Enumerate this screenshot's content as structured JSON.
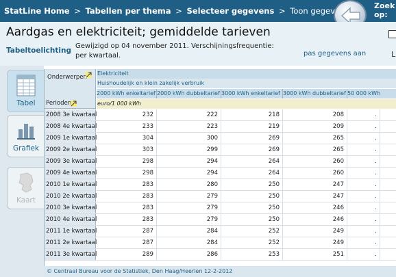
{
  "nav": {
    "crumbs": [
      {
        "label": "StatLine Home",
        "bold": true
      },
      {
        "label": "Tabellen per thema",
        "bold": true
      },
      {
        "label": "Selecteer gegevens",
        "bold": true
      },
      {
        "label": "Toon gegevens",
        "bold": false
      }
    ],
    "separator": ">",
    "zoek_line1": "Zoek",
    "zoek_line2": "op:"
  },
  "header": {
    "title": "Aardgas en elektriciteit; gemiddelde tarieven",
    "tabeltoelichting": "Tabeltoelichting",
    "gewijzigd_line1": "Gewijzigd op 04 november 2011. Verschijningsfrequentie:",
    "gewijzigd_line2": "per kwartaal.",
    "pas_gegevens_aan": "pas gegevens aan",
    "side_letter": "L"
  },
  "side_tabs": [
    {
      "label": "Tabel",
      "icon": "table-icon",
      "active": true
    },
    {
      "label": "Grafiek",
      "icon": "chart-icon",
      "active": false
    },
    {
      "label": "Kaart",
      "icon": "map-icon",
      "active": false
    }
  ],
  "table": {
    "onderwerpen": "Onderwerpen",
    "perioden": "Perioden",
    "subject": "Elektriciteit",
    "subsubject": "Huishoudelijk en klein zakelijk verbruik",
    "columns": [
      "2000 kWh enkeltarief",
      "2000 kWh dubbeltarief",
      "3000 kWh enkeltarief",
      "3000 kWh dubbeltarief",
      "50 000 kWh"
    ],
    "unit": "euro/1 000 kWh",
    "rows": [
      {
        "period": "2008 3e kwartaal",
        "values": [
          "232",
          "222",
          "218",
          "208",
          "."
        ]
      },
      {
        "period": "2008 4e kwartaal",
        "values": [
          "233",
          "223",
          "219",
          "209",
          "."
        ]
      },
      {
        "period": "2009 1e kwartaal",
        "values": [
          "304",
          "300",
          "269",
          "265",
          "."
        ]
      },
      {
        "period": "2009 2e kwartaal",
        "values": [
          "303",
          "299",
          "269",
          "265",
          "."
        ]
      },
      {
        "period": "2009 3e kwartaal",
        "values": [
          "298",
          "294",
          "264",
          "260",
          "."
        ]
      },
      {
        "period": "2009 4e kwartaal",
        "values": [
          "298",
          "294",
          "264",
          "260",
          "."
        ]
      },
      {
        "period": "2010 1e kwartaal",
        "values": [
          "283",
          "280",
          "250",
          "247",
          "."
        ]
      },
      {
        "period": "2010 2e kwartaal",
        "values": [
          "283",
          "279",
          "250",
          "247",
          "."
        ]
      },
      {
        "period": "2010 3e kwartaal",
        "values": [
          "283",
          "279",
          "250",
          "246",
          "."
        ]
      },
      {
        "period": "2010 4e kwartaal",
        "values": [
          "283",
          "279",
          "250",
          "246",
          "."
        ]
      },
      {
        "period": "2011 1e kwartaal",
        "values": [
          "287",
          "284",
          "252",
          "249",
          "."
        ]
      },
      {
        "period": "2011 2e kwartaal",
        "values": [
          "287",
          "284",
          "252",
          "249",
          "."
        ]
      },
      {
        "period": "2011 3e kwartaal",
        "values": [
          "289",
          "286",
          "253",
          "251",
          "."
        ]
      }
    ]
  },
  "footer": "© Centraal Bureau voor de Statistiek, Den Haag/Heerlen 12-2-2012",
  "colors": {
    "nav_bg": "#1f5f86",
    "title_bg": "#e8f2f6",
    "link": "#1f5f86",
    "header_blue": "#c8dde9",
    "unit_bg": "#f2efcf"
  }
}
